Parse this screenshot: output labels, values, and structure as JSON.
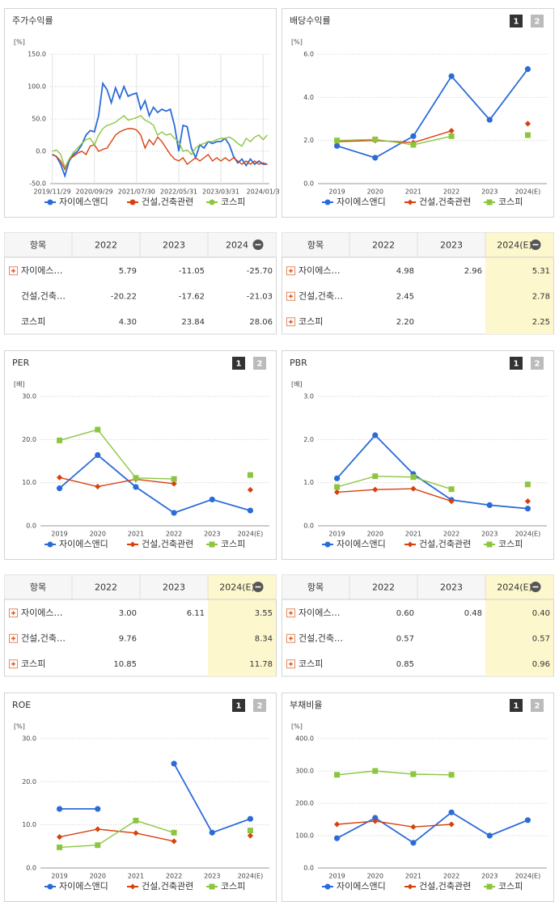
{
  "chart_data": [
    {
      "type": "line",
      "title": "주가수익률",
      "unit": "[%]",
      "categories": [
        "2019/11/29",
        null,
        null,
        null,
        null,
        null,
        null,
        null,
        null,
        null,
        "2020/09/29",
        null,
        null,
        null,
        null,
        null,
        null,
        null,
        null,
        null,
        "2021/07/30",
        null,
        null,
        null,
        null,
        null,
        null,
        null,
        null,
        null,
        "2022/05/31",
        null,
        null,
        null,
        null,
        null,
        null,
        null,
        null,
        null,
        "2023/03/31",
        null,
        null,
        null,
        null,
        null,
        null,
        null,
        null,
        null,
        "2024/01/3",
        null
      ],
      "ylim": [
        -50,
        150
      ],
      "yticks": [
        {
          "value": -50,
          "label": "-50.0"
        },
        {
          "value": 0,
          "label": "0.0"
        },
        {
          "value": 50,
          "label": "50.0"
        },
        {
          "value": 100,
          "label": "100.0"
        },
        {
          "value": 150,
          "label": "150.0"
        }
      ],
      "grid": true,
      "series": [
        {
          "name": "자이에스앤디",
          "color": "#2b6bd8",
          "values": [
            -5,
            -8,
            -20,
            -38,
            -15,
            -5,
            0,
            10,
            25,
            32,
            30,
            55,
            105,
            95,
            75,
            98,
            82,
            100,
            85,
            88,
            90,
            65,
            78,
            55,
            68,
            60,
            65,
            62,
            65,
            40,
            0,
            40,
            38,
            5,
            -10,
            10,
            5,
            15,
            12,
            15,
            15,
            20,
            10,
            -8,
            -18,
            -12,
            -22,
            -12,
            -20,
            -15,
            -20,
            -20
          ]
        },
        {
          "name": "건설,건축관련",
          "color": "#d9400f",
          "values": [
            -5,
            -8,
            -15,
            -28,
            -12,
            -8,
            -3,
            0,
            -5,
            8,
            10,
            0,
            3,
            5,
            15,
            25,
            30,
            33,
            35,
            35,
            33,
            25,
            5,
            18,
            10,
            22,
            15,
            5,
            -5,
            -12,
            -15,
            -10,
            -20,
            -15,
            -10,
            -15,
            -10,
            -5,
            -15,
            -10,
            -15,
            -10,
            -15,
            -10,
            -15,
            -20,
            -15,
            -20,
            -15,
            -20,
            -18,
            -20
          ]
        },
        {
          "name": "코스피",
          "color": "#8cc63f",
          "values": [
            0,
            2,
            -5,
            -25,
            -12,
            -2,
            5,
            12,
            18,
            20,
            10,
            25,
            35,
            40,
            42,
            45,
            50,
            55,
            48,
            50,
            52,
            55,
            48,
            45,
            40,
            25,
            30,
            25,
            27,
            20,
            15,
            0,
            2,
            -5,
            5,
            10,
            12,
            15,
            15,
            18,
            20,
            20,
            22,
            18,
            12,
            8,
            20,
            15,
            22,
            25,
            18,
            25
          ]
        }
      ]
    },
    {
      "type": "line",
      "title": "배당수익률",
      "unit": "[%]",
      "buttons": [
        "1",
        "2"
      ],
      "categories": [
        "2019",
        "2020",
        "2021",
        "2022",
        "2023",
        "2024(E)"
      ],
      "ylim": [
        0,
        6
      ],
      "yticks": [
        {
          "value": 0,
          "label": "0.0"
        },
        {
          "value": 2,
          "label": "2.0"
        },
        {
          "value": 4,
          "label": "4.0"
        },
        {
          "value": 6,
          "label": "6.0"
        }
      ],
      "grid": true,
      "series": [
        {
          "name": "자이에스앤디",
          "color": "#2b6bd8",
          "marker": "circle",
          "values": [
            1.75,
            1.2,
            2.2,
            4.98,
            2.96,
            5.31
          ]
        },
        {
          "name": "건설,건축관련",
          "color": "#d9400f",
          "marker": "diamond",
          "values": [
            1.95,
            2.0,
            1.9,
            2.45,
            null,
            2.78
          ]
        },
        {
          "name": "코스피",
          "color": "#8cc63f",
          "marker": "square",
          "values": [
            2.0,
            2.05,
            1.8,
            2.2,
            null,
            2.25
          ]
        }
      ]
    },
    {
      "type": "line",
      "title": "PER",
      "unit": "[배]",
      "buttons": [
        "1",
        "2"
      ],
      "categories": [
        "2019",
        "2020",
        "2021",
        "2022",
        "2023",
        "2024(E)"
      ],
      "ylim": [
        0,
        30
      ],
      "yticks": [
        {
          "value": 0,
          "label": "0.0"
        },
        {
          "value": 10,
          "label": "10.0"
        },
        {
          "value": 20,
          "label": "20.0"
        },
        {
          "value": 30,
          "label": "30.0"
        }
      ],
      "grid": true,
      "series": [
        {
          "name": "자이에스앤디",
          "color": "#2b6bd8",
          "marker": "circle",
          "values": [
            8.7,
            16.4,
            9.0,
            3.0,
            6.11,
            3.55
          ]
        },
        {
          "name": "건설,건축관련",
          "color": "#d9400f",
          "marker": "diamond",
          "values": [
            11.2,
            9.1,
            10.8,
            9.76,
            null,
            8.34
          ]
        },
        {
          "name": "코스피",
          "color": "#8cc63f",
          "marker": "square",
          "values": [
            19.8,
            22.3,
            11.1,
            10.85,
            null,
            11.78
          ]
        }
      ]
    },
    {
      "type": "line",
      "title": "PBR",
      "unit": "[배]",
      "buttons": [
        "1",
        "2"
      ],
      "categories": [
        "2019",
        "2020",
        "2021",
        "2022",
        "2023",
        "2024(E)"
      ],
      "ylim": [
        0,
        3
      ],
      "yticks": [
        {
          "value": 0,
          "label": "0.0"
        },
        {
          "value": 1,
          "label": "1.0"
        },
        {
          "value": 2,
          "label": "2.0"
        },
        {
          "value": 3,
          "label": "3.0"
        }
      ],
      "grid": true,
      "series": [
        {
          "name": "자이에스앤디",
          "color": "#2b6bd8",
          "marker": "circle",
          "values": [
            1.1,
            2.1,
            1.2,
            0.6,
            0.48,
            0.4
          ]
        },
        {
          "name": "건설,건축관련",
          "color": "#d9400f",
          "marker": "diamond",
          "values": [
            0.78,
            0.84,
            0.86,
            0.57,
            null,
            0.57
          ]
        },
        {
          "name": "코스피",
          "color": "#8cc63f",
          "marker": "square",
          "values": [
            0.9,
            1.15,
            1.13,
            0.85,
            null,
            0.96
          ]
        }
      ]
    },
    {
      "type": "line",
      "title": "ROE",
      "unit": "[%]",
      "buttons": [
        "1",
        "2"
      ],
      "categories": [
        "2019",
        "2020",
        "2021",
        "2022",
        "2023",
        "2024(E)"
      ],
      "ylim": [
        0,
        30
      ],
      "yticks": [
        {
          "value": 0,
          "label": "0.0"
        },
        {
          "value": 10,
          "label": "10.0"
        },
        {
          "value": 20,
          "label": "20.0"
        },
        {
          "value": 30,
          "label": "30.0"
        }
      ],
      "grid": true,
      "series": [
        {
          "name": "자이에스앤디",
          "color": "#2b6bd8",
          "marker": "circle",
          "values": [
            13.7,
            13.7,
            null,
            24.2,
            8.2,
            11.4
          ]
        },
        {
          "name": "건설,건축관련",
          "color": "#d9400f",
          "marker": "diamond",
          "values": [
            7.2,
            9.0,
            8.1,
            6.2,
            null,
            7.5
          ]
        },
        {
          "name": "코스피",
          "color": "#8cc63f",
          "marker": "square",
          "values": [
            4.8,
            5.3,
            11.0,
            8.2,
            null,
            8.7
          ]
        }
      ]
    },
    {
      "type": "line",
      "title": "부채비율",
      "unit": "[%]",
      "buttons": [
        "1",
        "2"
      ],
      "categories": [
        "2019",
        "2020",
        "2021",
        "2022",
        "2023",
        "2024(E)"
      ],
      "ylim": [
        0,
        400
      ],
      "yticks": [
        {
          "value": 0,
          "label": "0.0"
        },
        {
          "value": 100,
          "label": "100.0"
        },
        {
          "value": 200,
          "label": "200.0"
        },
        {
          "value": 300,
          "label": "300.0"
        },
        {
          "value": 400,
          "label": "400.0"
        }
      ],
      "grid": true,
      "series": [
        {
          "name": "자이에스앤디",
          "color": "#2b6bd8",
          "marker": "circle",
          "values": [
            92,
            155,
            78,
            172,
            100,
            148
          ]
        },
        {
          "name": "건설,건축관련",
          "color": "#d9400f",
          "marker": "diamond",
          "values": [
            135,
            145,
            127,
            135,
            null,
            null
          ]
        },
        {
          "name": "코스피",
          "color": "#8cc63f",
          "marker": "square",
          "values": [
            288,
            300,
            290,
            288,
            null,
            null
          ]
        }
      ]
    }
  ],
  "tables": [
    {
      "header": [
        "항목",
        "2022",
        "2023",
        "2024"
      ],
      "row_icons": [
        true,
        false,
        false
      ],
      "rows": [
        [
          "자이에스…",
          "5.79",
          "-11.05",
          "-25.70"
        ],
        [
          "건설,건축…",
          "-20.22",
          "-17.62",
          "-21.03"
        ],
        [
          "코스피",
          "4.30",
          "23.84",
          "28.06"
        ]
      ]
    },
    {
      "header": [
        "항목",
        "2022",
        "2023",
        "2024(E)"
      ],
      "row_icons": [
        true,
        true,
        true
      ],
      "highlight_color": "#fdf7cd",
      "rows": [
        [
          "자이에스…",
          "4.98",
          "2.96",
          "5.31"
        ],
        [
          "건설,건축…",
          "2.45",
          null,
          "2.78"
        ],
        [
          "코스피",
          "2.20",
          null,
          "2.25"
        ]
      ]
    },
    {
      "header": [
        "항목",
        "2022",
        "2023",
        "2024(E)"
      ],
      "row_icons": [
        true,
        true,
        true
      ],
      "highlight_color": "#fdf7cd",
      "rows": [
        [
          "자이에스…",
          "3.00",
          "6.11",
          "3.55"
        ],
        [
          "건설,건축…",
          "9.76",
          null,
          "8.34"
        ],
        [
          "코스피",
          "10.85",
          null,
          "11.78"
        ]
      ]
    },
    {
      "header": [
        "항목",
        "2022",
        "2023",
        "2024(E)"
      ],
      "row_icons": [
        true,
        true,
        true
      ],
      "highlight_color": "#fdf7cd",
      "rows": [
        [
          "자이에스…",
          "0.60",
          "0.48",
          "0.40"
        ],
        [
          "건설,건축…",
          "0.57",
          null,
          "0.57"
        ],
        [
          "코스피",
          "0.85",
          null,
          "0.96"
        ]
      ]
    }
  ]
}
